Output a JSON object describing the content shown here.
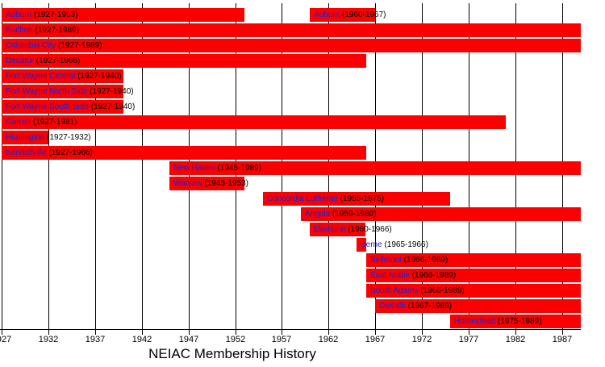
{
  "chart_data": {
    "type": "bar",
    "variant": "gantt-timeline",
    "title": "NEIAC Membership History",
    "x_axis": {
      "min": 1927,
      "max": 1989,
      "tick_years": [
        1927,
        1932,
        1937,
        1942,
        1947,
        1952,
        1957,
        1962,
        1967,
        1972,
        1977,
        1982,
        1987
      ],
      "grid": true
    },
    "bar_color": "#fa0000",
    "name_color": "#2222cc",
    "year_color": "#000000",
    "label_format": "name (start-end)",
    "rows": [
      {
        "school": "Auburn",
        "periods": [
          {
            "start": 1927,
            "end": 1953
          },
          {
            "start": 1960,
            "end": 1967
          }
        ]
      },
      {
        "school": "Bluffton",
        "periods": [
          {
            "start": 1927,
            "end": 1989
          }
        ]
      },
      {
        "school": "Columbia City",
        "periods": [
          {
            "start": 1927,
            "end": 1989
          }
        ]
      },
      {
        "school": "Decatur",
        "periods": [
          {
            "start": 1927,
            "end": 1966
          }
        ]
      },
      {
        "school": "Fort Wayne Central",
        "periods": [
          {
            "start": 1927,
            "end": 1940
          }
        ]
      },
      {
        "school": "Fort Wayne North Side",
        "periods": [
          {
            "start": 1927,
            "end": 1940
          }
        ]
      },
      {
        "school": "Fort Wayne South Side",
        "periods": [
          {
            "start": 1927,
            "end": 1940
          }
        ]
      },
      {
        "school": "Garrett",
        "periods": [
          {
            "start": 1927,
            "end": 1981
          }
        ]
      },
      {
        "school": "Huntington",
        "periods": [
          {
            "start": 1927,
            "end": 1932
          }
        ]
      },
      {
        "school": "Kendallville",
        "periods": [
          {
            "start": 1927,
            "end": 1966
          }
        ]
      },
      {
        "school": "New Haven",
        "periods": [
          {
            "start": 1945,
            "end": 1989
          }
        ]
      },
      {
        "school": "Warsaw",
        "periods": [
          {
            "start": 1945,
            "end": 1953
          }
        ]
      },
      {
        "school": "Concordia Lutheran",
        "periods": [
          {
            "start": 1955,
            "end": 1975
          }
        ]
      },
      {
        "school": "Angola",
        "periods": [
          {
            "start": 1959,
            "end": 1989
          }
        ]
      },
      {
        "school": "Elmhurst",
        "periods": [
          {
            "start": 1960,
            "end": 1966
          }
        ]
      },
      {
        "school": "Berne",
        "periods": [
          {
            "start": 1965,
            "end": 1966
          }
        ]
      },
      {
        "school": "Bellmont",
        "periods": [
          {
            "start": 1966,
            "end": 1989
          }
        ]
      },
      {
        "school": "East Noble",
        "periods": [
          {
            "start": 1966,
            "end": 1989
          }
        ]
      },
      {
        "school": "South Adams",
        "periods": [
          {
            "start": 1966,
            "end": 1989
          }
        ]
      },
      {
        "school": "DeKalb",
        "periods": [
          {
            "start": 1967,
            "end": 1989
          }
        ]
      },
      {
        "school": "Homestead",
        "periods": [
          {
            "start": 1975,
            "end": 1989
          }
        ]
      }
    ]
  }
}
